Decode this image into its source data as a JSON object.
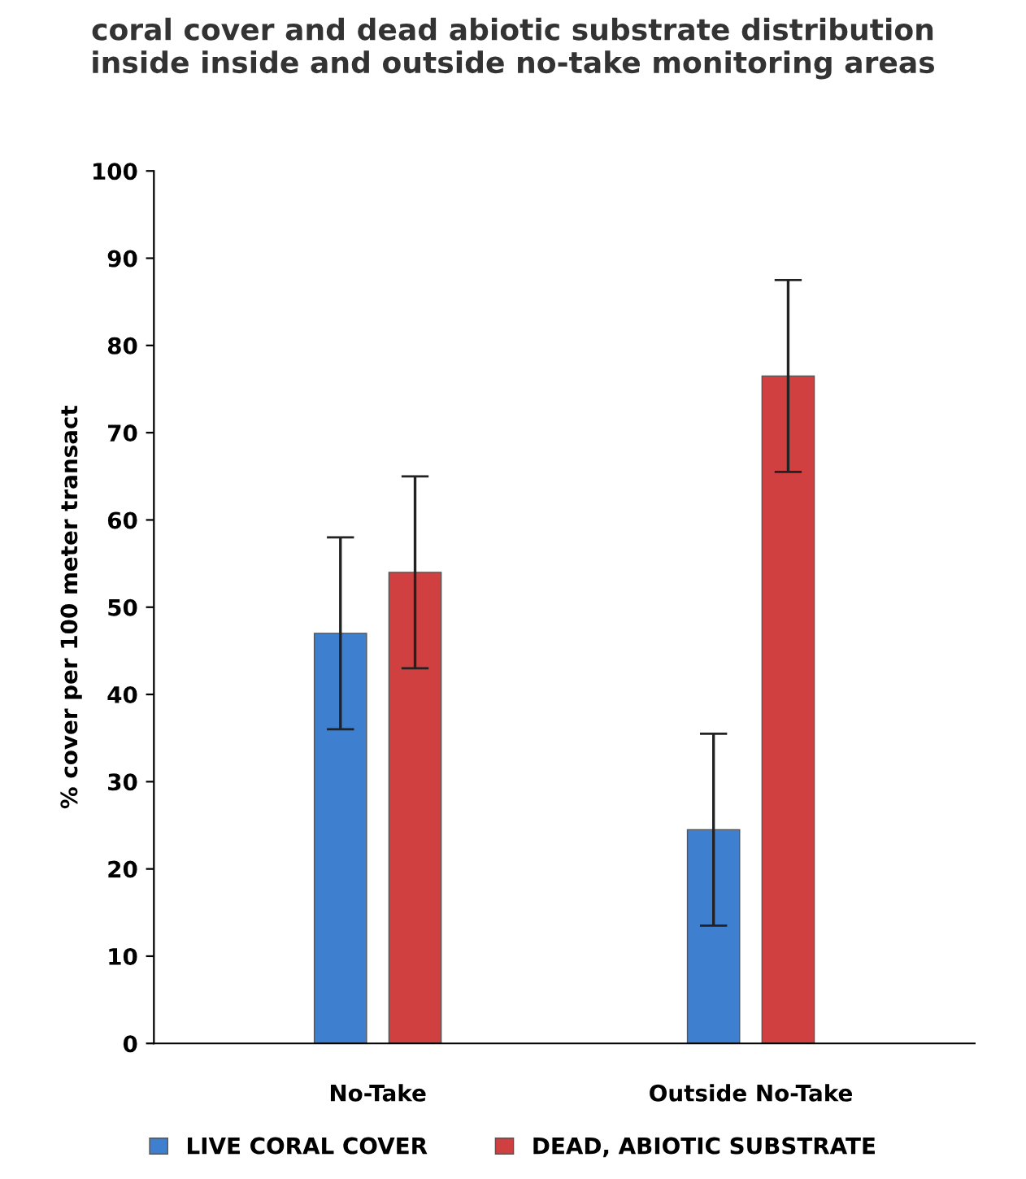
{
  "chart_data": {
    "type": "bar",
    "title": "coral cover and dead abiotic substrate distribution\ninside inside and outside no-take monitoring areas",
    "ylabel": "% cover per 100 meter transact",
    "categories": [
      "No-Take",
      "Outside No-Take"
    ],
    "series": [
      {
        "name": "LIVE CORAL COVER",
        "color": "#3f7fcf",
        "values": [
          47,
          24.5
        ],
        "errors": [
          11,
          11
        ]
      },
      {
        "name": "DEAD, ABIOTIC SUBSTRATE",
        "color": "#d04040",
        "values": [
          54,
          76.5
        ],
        "errors": [
          11,
          11
        ]
      }
    ],
    "ylim": [
      0,
      100
    ],
    "yticks": [
      0,
      10,
      20,
      30,
      40,
      50,
      60,
      70,
      80,
      90,
      100
    ],
    "grid": false,
    "legend": "bottom"
  }
}
